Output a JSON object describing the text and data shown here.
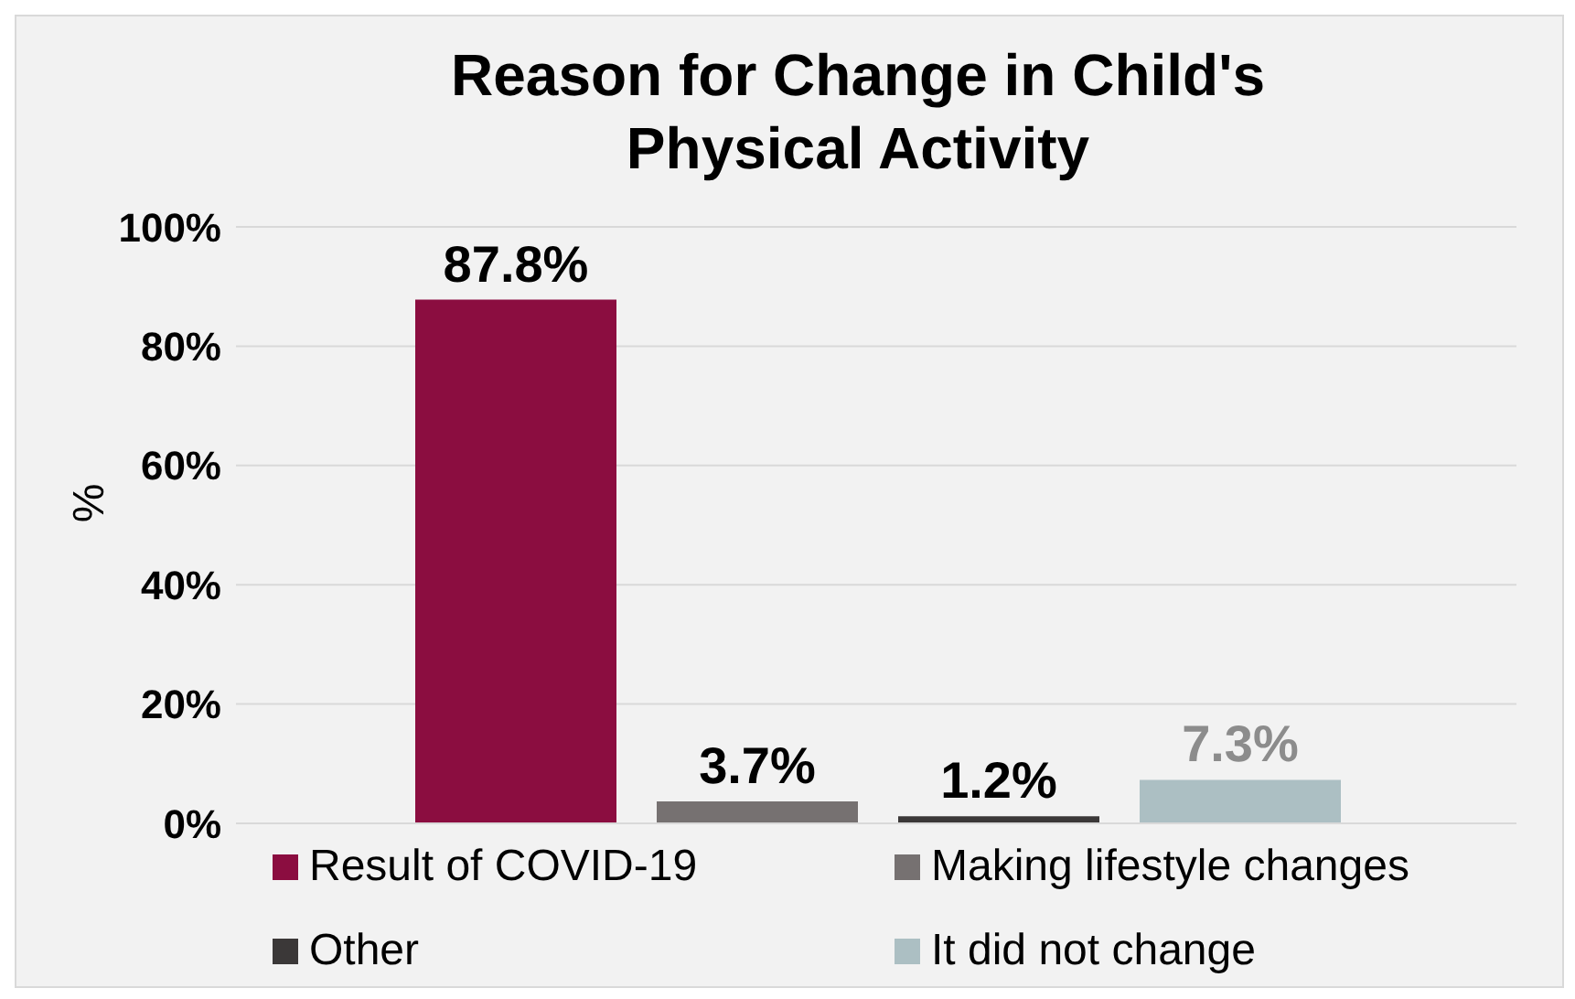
{
  "chart_data": {
    "type": "bar",
    "title": "Reason for Change in Child's Physical Activity",
    "ylabel": "%",
    "categories": [
      null
    ],
    "series": [
      {
        "name": "Result of COVID-19",
        "color": "#8b0d40",
        "values": [
          87.8
        ],
        "value_labels": [
          "87.8%"
        ]
      },
      {
        "name": "Making lifestyle changes",
        "color": "#767171",
        "values": [
          3.7
        ],
        "value_labels": [
          "3.7%"
        ]
      },
      {
        "name": "Other",
        "color": "#3b3838",
        "values": [
          1.2
        ],
        "value_labels": [
          "1.2%"
        ]
      },
      {
        "name": "It did not change",
        "color": "#acbfc3",
        "values": [
          7.3
        ],
        "value_labels": [
          "7.3%"
        ]
      }
    ],
    "ylim": [
      0,
      100
    ],
    "yticks": [
      {
        "value": 0,
        "label": "0%"
      },
      {
        "value": 20,
        "label": "20%"
      },
      {
        "value": 40,
        "label": "40%"
      },
      {
        "value": 60,
        "label": "60%"
      },
      {
        "value": 80,
        "label": "80%"
      },
      {
        "value": 100,
        "label": "100%"
      }
    ],
    "grid": "y",
    "legend": "bottom"
  }
}
